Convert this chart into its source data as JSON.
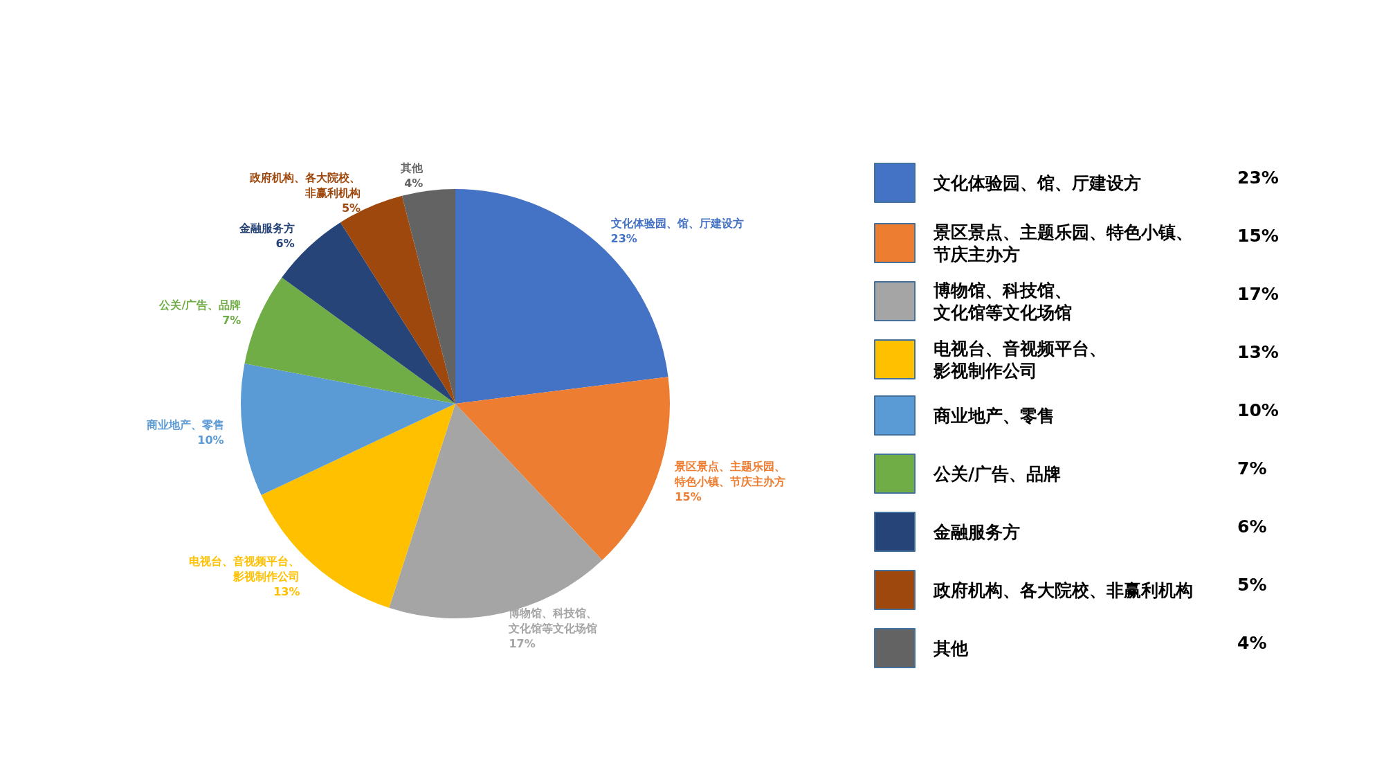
{
  "chart_data": {
    "type": "pie",
    "categories": [
      "文化体验园、馆、厅建设方",
      "景区景点、主题乐园、特色小镇、节庆主办方",
      "博物馆、科技馆、文化馆等文化场馆",
      "电视台、音视频平台、影视制作公司",
      "商业地产、零售",
      "公关/广告、品牌",
      "金融服务方",
      "政府机构、各大院校、非赢利机构",
      "其他"
    ],
    "values": [
      23,
      15,
      17,
      13,
      10,
      7,
      6,
      5,
      4
    ],
    "value_labels": [
      "23%",
      "15%",
      "17%",
      "13%",
      "10%",
      "7%",
      "6%",
      "5%",
      "4%"
    ],
    "colors": [
      "#4472c4",
      "#ed7d31",
      "#a5a5a5",
      "#ffc000",
      "#5b9bd5",
      "#70ad47",
      "#264478",
      "#9e480e",
      "#636363"
    ],
    "legend": "right"
  }
}
